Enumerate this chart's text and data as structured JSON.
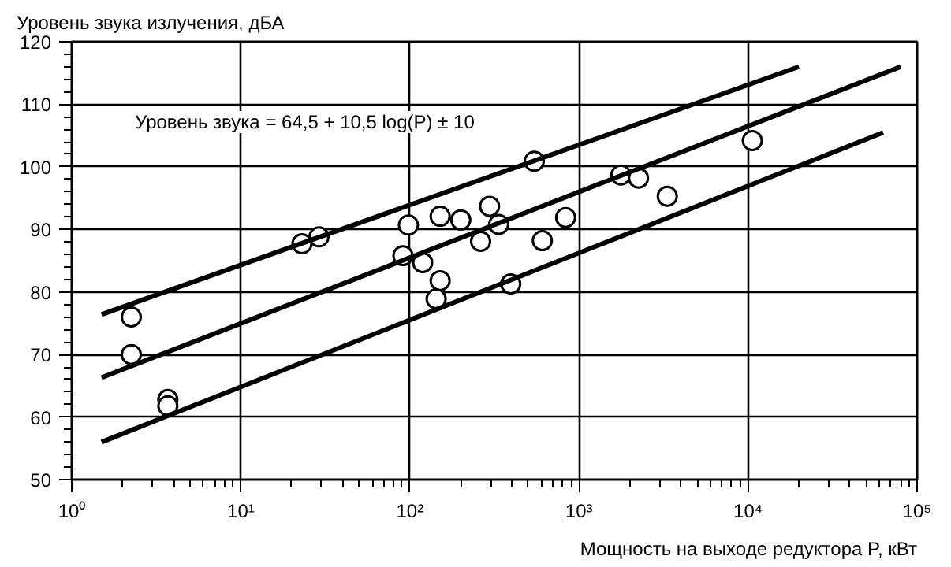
{
  "chart_data": {
    "type": "scatter",
    "xlabel": "Мощность на выходе редуктора P, кВт",
    "ylabel": "Уровень звука излучения, дБА",
    "annotations": [
      "Уровень звука = 64,5 + 10,5 log(P) ± 10"
    ],
    "log": "x",
    "xlim": [
      1,
      100000
    ],
    "ylim": [
      50,
      120
    ],
    "xticks": [
      {
        "value": 1,
        "label": "10⁰"
      },
      {
        "value": 10,
        "label": "10¹"
      },
      {
        "value": 100,
        "label": "10²"
      },
      {
        "value": 1000,
        "label": "10³"
      },
      {
        "value": 10000,
        "label": "10⁴"
      },
      {
        "value": 100000,
        "label": "10⁵"
      }
    ],
    "yticks": [
      50,
      60,
      70,
      80,
      90,
      100,
      110,
      120
    ],
    "grid": true,
    "series": [
      {
        "color": "#000000",
        "marker": "circle",
        "x": [
          2.25,
          2.25,
          3.7,
          3.7,
          23,
          29,
          98,
          91,
          119,
          151,
          200,
          151,
          143,
          544,
          296,
          335,
          262,
          395,
          607,
          834,
          1770,
          2250,
          3330,
          10600
        ],
        "values": [
          76,
          70,
          62.8,
          61.8,
          87.7,
          88.8,
          90.7,
          85.8,
          84.7,
          92.1,
          91.5,
          81.8,
          78.9,
          100.9,
          93.7,
          90.8,
          88.1,
          81.3,
          88.2,
          91.9,
          98.7,
          98.2,
          95.3,
          104.2
        ]
      },
      {
        "type": "line",
        "color": "#000000",
        "line_style": "solid",
        "marker": "none",
        "x": [
          1.5,
          20000
        ],
        "values": [
          76.4,
          116
        ]
      },
      {
        "type": "line",
        "color": "#000000",
        "line_style": "solid",
        "marker": "none",
        "x": [
          1.5,
          80000
        ],
        "values": [
          66.3,
          116
        ]
      },
      {
        "type": "line",
        "color": "#000000",
        "line_style": "solid",
        "marker": "none",
        "x": [
          1.5,
          63000
        ],
        "values": [
          56,
          105.5
        ]
      }
    ]
  }
}
